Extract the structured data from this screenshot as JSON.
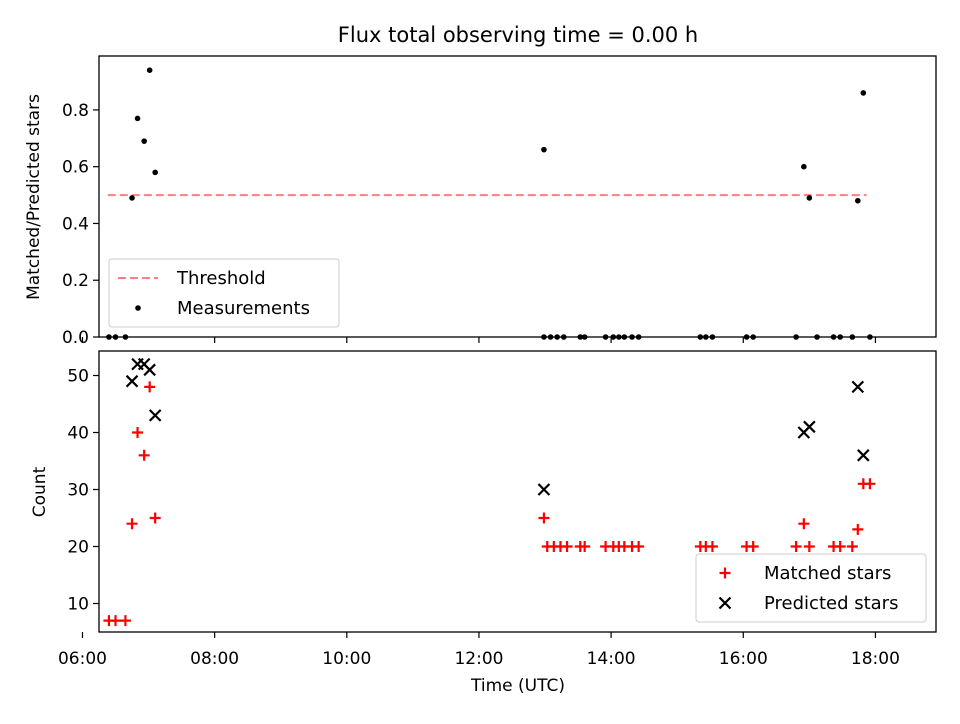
{
  "chart_data": {
    "type": "scatter",
    "title": "Flux total observing time = 0.00 h",
    "xlabel": "Time (UTC)",
    "x_unit": "time of day (UTC)",
    "xlim": [
      "06:15",
      "18:55"
    ],
    "xticks": [
      "06:00",
      "08:00",
      "10:00",
      "12:00",
      "14:00",
      "16:00",
      "18:00"
    ],
    "panels": [
      {
        "name": "ratio",
        "ylabel": "Matched/Predicted stars",
        "ylim": [
          0,
          0.99
        ],
        "yticks": [
          0.0,
          0.2,
          0.4,
          0.6,
          0.8
        ],
        "legend_location": "lower-left",
        "threshold": {
          "name": "Threshold",
          "value": 0.5,
          "x_start": "06:23",
          "x_end": "17:52",
          "color": "#ff7f7f",
          "style": "dashed"
        },
        "series": [
          {
            "name": "Measurements",
            "marker": "dot",
            "color": "#000000",
            "points": [
              [
                "06:24",
                0.0
              ],
              [
                "06:30",
                0.0
              ],
              [
                "06:39",
                0.0
              ],
              [
                "06:45",
                0.49
              ],
              [
                "06:50",
                0.77
              ],
              [
                "06:56",
                0.69
              ],
              [
                "07:01",
                0.94
              ],
              [
                "07:06",
                0.58
              ],
              [
                "12:59",
                0.66
              ],
              [
                "12:59",
                0.0
              ],
              [
                "13:05",
                0.0
              ],
              [
                "13:11",
                0.0
              ],
              [
                "13:17",
                0.0
              ],
              [
                "13:32",
                0.0
              ],
              [
                "13:36",
                0.0
              ],
              [
                "13:55",
                0.0
              ],
              [
                "14:02",
                0.0
              ],
              [
                "14:07",
                0.0
              ],
              [
                "14:12",
                0.0
              ],
              [
                "14:19",
                0.0
              ],
              [
                "14:25",
                0.0
              ],
              [
                "15:21",
                0.0
              ],
              [
                "15:26",
                0.0
              ],
              [
                "15:32",
                0.0
              ],
              [
                "16:03",
                0.0
              ],
              [
                "16:09",
                0.0
              ],
              [
                "16:48",
                0.0
              ],
              [
                "16:55",
                0.6
              ],
              [
                "17:00",
                0.49
              ],
              [
                "17:07",
                0.0
              ],
              [
                "17:22",
                0.0
              ],
              [
                "17:28",
                0.0
              ],
              [
                "17:39",
                0.0
              ],
              [
                "17:44",
                0.48
              ],
              [
                "17:49",
                0.86
              ],
              [
                "17:55",
                0.0
              ]
            ]
          }
        ]
      },
      {
        "name": "counts",
        "ylabel": "Count",
        "ylim": [
          5,
          54.3
        ],
        "yticks": [
          10,
          20,
          30,
          40,
          50
        ],
        "legend_location": "lower-right",
        "series": [
          {
            "name": "Matched stars",
            "marker": "plus",
            "color": "#ff0000",
            "points": [
              [
                "06:24",
                7
              ],
              [
                "06:30",
                7
              ],
              [
                "06:39",
                7
              ],
              [
                "06:45",
                24
              ],
              [
                "06:50",
                40
              ],
              [
                "06:56",
                36
              ],
              [
                "07:01",
                48
              ],
              [
                "07:06",
                25
              ],
              [
                "12:59",
                25
              ],
              [
                "13:02",
                20
              ],
              [
                "13:08",
                20
              ],
              [
                "13:14",
                20
              ],
              [
                "13:20",
                20
              ],
              [
                "13:32",
                20
              ],
              [
                "13:36",
                20
              ],
              [
                "13:55",
                20
              ],
              [
                "14:02",
                20
              ],
              [
                "14:07",
                20
              ],
              [
                "14:12",
                20
              ],
              [
                "14:19",
                20
              ],
              [
                "14:25",
                20
              ],
              [
                "15:21",
                20
              ],
              [
                "15:26",
                20
              ],
              [
                "15:32",
                20
              ],
              [
                "16:03",
                20
              ],
              [
                "16:09",
                20
              ],
              [
                "16:48",
                20
              ],
              [
                "16:55",
                24
              ],
              [
                "17:00",
                20
              ],
              [
                "17:22",
                20
              ],
              [
                "17:28",
                20
              ],
              [
                "17:39",
                20
              ],
              [
                "17:44",
                23
              ],
              [
                "17:49",
                31
              ],
              [
                "17:55",
                31
              ]
            ]
          },
          {
            "name": "Predicted stars",
            "marker": "x",
            "color": "#000000",
            "points": [
              [
                "06:45",
                49
              ],
              [
                "06:50",
                52
              ],
              [
                "06:56",
                52
              ],
              [
                "07:01",
                51
              ],
              [
                "07:06",
                43
              ],
              [
                "12:59",
                30
              ],
              [
                "16:55",
                40
              ],
              [
                "17:00",
                41
              ],
              [
                "17:44",
                48
              ],
              [
                "17:49",
                36
              ]
            ]
          }
        ]
      }
    ]
  }
}
